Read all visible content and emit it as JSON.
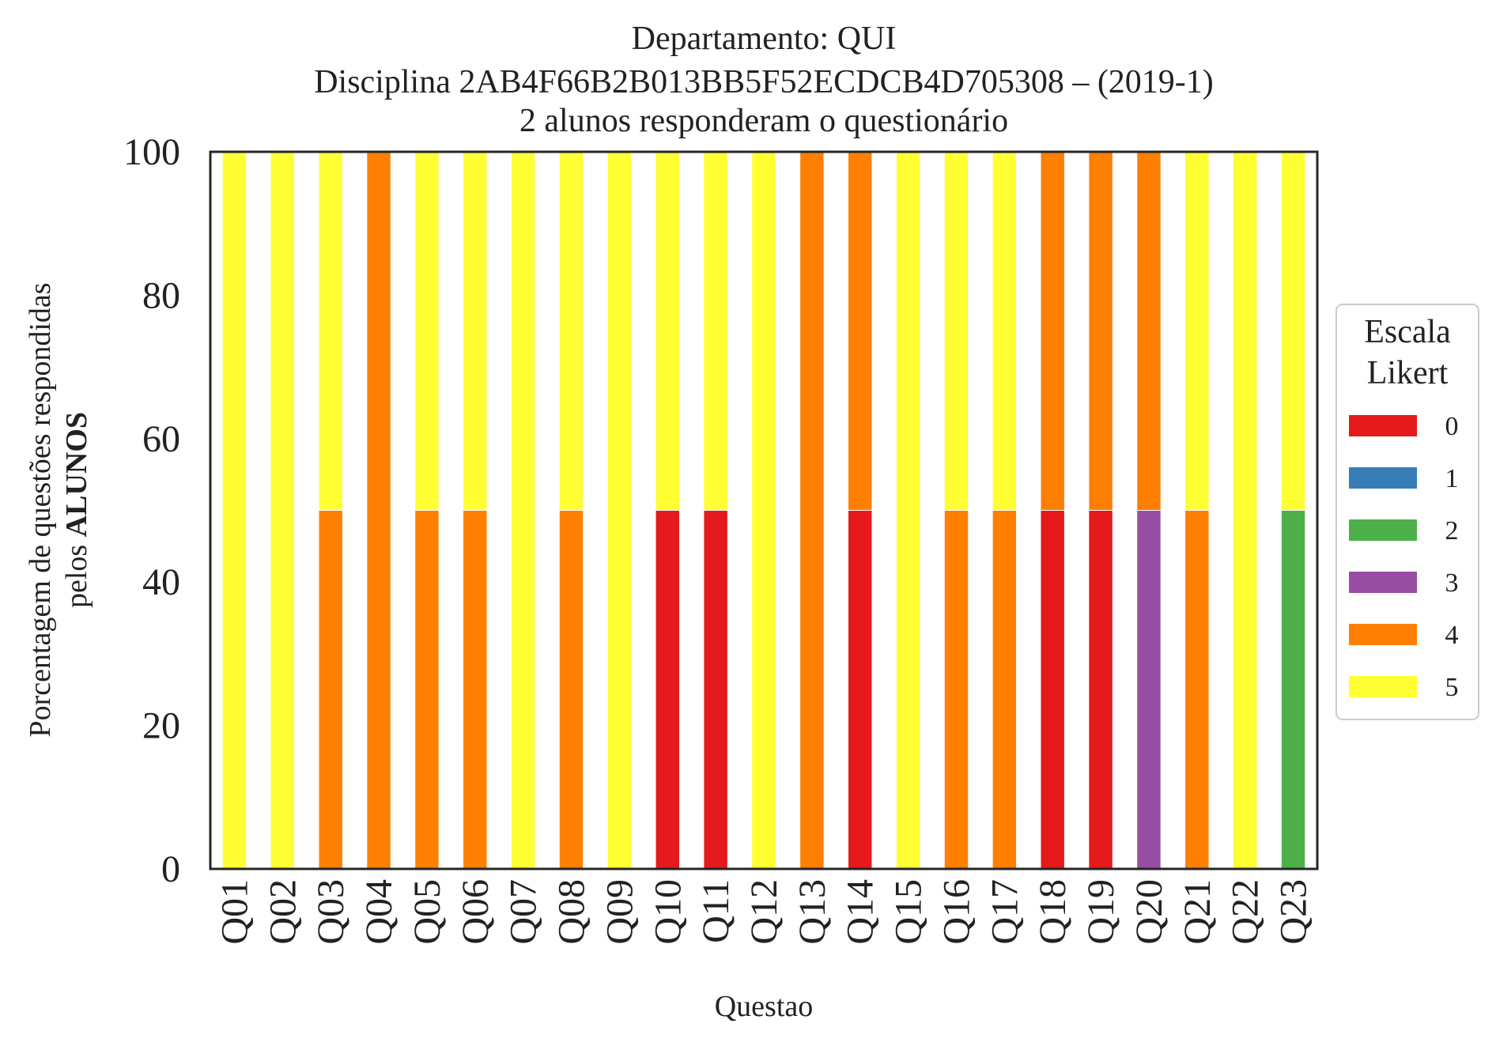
{
  "chart_data": {
    "type": "bar",
    "stacked": true,
    "title_lines": [
      "Departamento: QUI",
      "Disciplina 2AB4F66B2B013BB5F52ECDCB4D705308 – (2019-1)",
      "2 alunos responderam o questionário"
    ],
    "xlabel": "Questao",
    "ylabel_line1": "Porcentagem de questões respondidas",
    "ylabel_line2_prefix": "pelos ",
    "ylabel_line2_bold": "ALUNOS",
    "ylim": [
      0,
      100
    ],
    "yticks": [
      "0",
      "20",
      "40",
      "60",
      "80",
      "100"
    ],
    "categories": [
      "Q01",
      "Q02",
      "Q03",
      "Q04",
      "Q05",
      "Q06",
      "Q07",
      "Q08",
      "Q09",
      "Q10",
      "Q11",
      "Q12",
      "Q13",
      "Q14",
      "Q15",
      "Q16",
      "Q17",
      "Q18",
      "Q19",
      "Q20",
      "Q21",
      "Q22",
      "Q23"
    ],
    "legend": {
      "title_lines": [
        "Escala",
        "Likert"
      ],
      "placement": "center-right, outside"
    },
    "grid": false,
    "series": [
      {
        "name": "0",
        "color": "#e41a1c",
        "values": [
          0,
          0,
          0,
          0,
          0,
          0,
          0,
          0,
          0,
          50,
          50,
          0,
          0,
          50,
          0,
          0,
          0,
          50,
          50,
          0,
          0,
          0,
          0
        ]
      },
      {
        "name": "1",
        "color": "#377eb8",
        "values": [
          0,
          0,
          0,
          0,
          0,
          0,
          0,
          0,
          0,
          0,
          0,
          0,
          0,
          0,
          0,
          0,
          0,
          0,
          0,
          0,
          0,
          0,
          0
        ]
      },
      {
        "name": "2",
        "color": "#4daf4a",
        "values": [
          0,
          0,
          0,
          0,
          0,
          0,
          0,
          0,
          0,
          0,
          0,
          0,
          0,
          0,
          0,
          0,
          0,
          0,
          0,
          0,
          0,
          0,
          50
        ]
      },
      {
        "name": "3",
        "color": "#984ea3",
        "values": [
          0,
          0,
          0,
          0,
          0,
          0,
          0,
          0,
          0,
          0,
          0,
          0,
          0,
          0,
          0,
          0,
          0,
          0,
          0,
          50,
          0,
          0,
          0
        ]
      },
      {
        "name": "4",
        "color": "#ff7f00",
        "values": [
          0,
          0,
          50,
          100,
          50,
          50,
          0,
          50,
          0,
          0,
          0,
          0,
          100,
          50,
          0,
          50,
          50,
          50,
          50,
          50,
          50,
          0,
          0
        ]
      },
      {
        "name": "5",
        "color": "#ffff33",
        "values": [
          100,
          100,
          50,
          0,
          50,
          50,
          100,
          50,
          100,
          50,
          50,
          100,
          0,
          0,
          100,
          50,
          50,
          0,
          0,
          0,
          50,
          100,
          50
        ]
      }
    ]
  }
}
